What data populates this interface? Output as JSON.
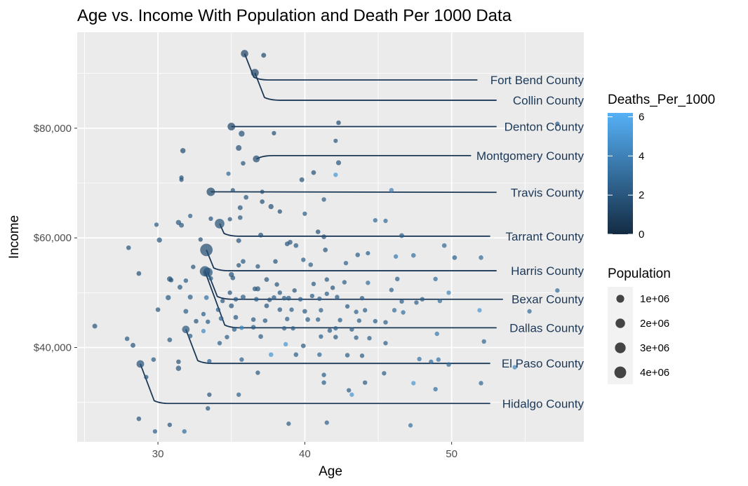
{
  "chart_data": {
    "type": "scatter",
    "title": "Age vs. Income With Population and Death Per 1000 Data",
    "xlabel": "Age",
    "ylabel": "Income",
    "xlim": [
      24.5,
      59.0
    ],
    "ylim": [
      22800,
      97500
    ],
    "x_ticks": [
      30,
      40,
      50
    ],
    "y_ticks": [
      {
        "value": 40000,
        "label": "$40,000"
      },
      {
        "value": 60000,
        "label": "$60,000"
      },
      {
        "value": 80000,
        "label": "$80,000"
      }
    ],
    "grid": true,
    "color_scale": {
      "name": "Deaths_Per_1000",
      "min": 0,
      "max": 6.2,
      "low_color": "#132b43",
      "high_color": "#56b1f7",
      "breaks": [
        0,
        2,
        4,
        6
      ]
    },
    "size_legend": {
      "name": "Population",
      "breaks": [
        {
          "value": 1000000,
          "label": "1e+06"
        },
        {
          "value": 2000000,
          "label": "2e+06"
        },
        {
          "value": 3000000,
          "label": "3e+06"
        },
        {
          "value": 4000000,
          "label": "4e+06"
        }
      ]
    },
    "labeled_points": [
      {
        "name": "Fort Bend County",
        "age": 35.9,
        "income": 93600,
        "pop": 800000,
        "d": 1.2,
        "label_y": 88800
      },
      {
        "name": "Collin County",
        "age": 36.6,
        "income": 90100,
        "pop": 1000000,
        "d": 1.2,
        "label_y": 85100
      },
      {
        "name": "Denton County",
        "age": 35.0,
        "income": 80300,
        "pop": 900000,
        "d": 1.2,
        "label_y": 80300
      },
      {
        "name": "Montgomery County",
        "age": 36.7,
        "income": 74400,
        "pop": 600000,
        "d": 1.6,
        "label_y": 75000
      },
      {
        "name": "Travis County",
        "age": 33.6,
        "income": 68400,
        "pop": 1300000,
        "d": 1.4,
        "label_y": 68300
      },
      {
        "name": "Tarrant County",
        "age": 34.2,
        "income": 62600,
        "pop": 2100000,
        "d": 1.8,
        "label_y": 60300
      },
      {
        "name": "Harris County",
        "age": 33.3,
        "income": 57800,
        "pop": 4700000,
        "d": 1.6,
        "label_y": 54000
      },
      {
        "name": "Bexar County",
        "age": 33.4,
        "income": 53700,
        "pop": 2000000,
        "d": 2.0,
        "label_y": 48800
      },
      {
        "name": "Dallas County",
        "age": 33.2,
        "income": 53900,
        "pop": 2600000,
        "d": 1.8,
        "label_y": 43600
      },
      {
        "name": "El Paso County",
        "age": 31.9,
        "income": 43300,
        "pop": 840000,
        "d": 2.0,
        "label_y": 37100
      },
      {
        "name": "Hidalgo County",
        "age": 28.8,
        "income": 37000,
        "pop": 860000,
        "d": 1.8,
        "label_y": 29800
      }
    ],
    "points": [
      [
        37.2,
        93300,
        60000,
        1.5
      ],
      [
        42.3,
        81000,
        30000,
        1.6
      ],
      [
        37.9,
        79100,
        15000,
        1.8
      ],
      [
        35.5,
        76400,
        200000,
        1.8
      ],
      [
        35.7,
        79000,
        250000,
        1.8
      ],
      [
        31.7,
        75900,
        120000,
        1.6
      ],
      [
        42.1,
        77700,
        10000,
        2.0
      ],
      [
        42.1,
        71500,
        15000,
        5.0
      ],
      [
        42.3,
        73700,
        70000,
        2.0
      ],
      [
        40.6,
        71900,
        40000,
        1.8
      ],
      [
        39.8,
        70600,
        60000,
        2.0
      ],
      [
        34.8,
        71700,
        10000,
        2.8
      ],
      [
        35.8,
        73600,
        30000,
        2.0
      ],
      [
        31.6,
        71000,
        15000,
        2.0
      ],
      [
        31.6,
        70600,
        15000,
        2.0
      ],
      [
        37.1,
        68400,
        10000,
        1.8
      ],
      [
        35.1,
        68700,
        10000,
        2.0
      ],
      [
        36.0,
        67400,
        40000,
        2.0
      ],
      [
        37.7,
        65700,
        100000,
        1.8
      ],
      [
        37.1,
        66600,
        30000,
        1.8
      ],
      [
        41.3,
        67000,
        20000,
        2.4
      ],
      [
        45.9,
        68700,
        20000,
        4.0
      ],
      [
        35.6,
        65500,
        60000,
        2.0
      ],
      [
        35.6,
        63700,
        30000,
        2.2
      ],
      [
        34.9,
        63400,
        10000,
        2.0
      ],
      [
        38.3,
        64800,
        15000,
        1.8
      ],
      [
        40.0,
        64400,
        15000,
        2.2
      ],
      [
        44.8,
        63200,
        15000,
        2.8
      ],
      [
        45.5,
        63100,
        15000,
        3.0
      ],
      [
        32.2,
        64000,
        15000,
        2.6
      ],
      [
        31.4,
        62800,
        100000,
        2.0
      ],
      [
        31.6,
        62300,
        60000,
        2.2
      ],
      [
        33.6,
        63500,
        20000,
        2.0
      ],
      [
        29.9,
        62400,
        15000,
        2.2
      ],
      [
        28.0,
        58200,
        30000,
        2.0
      ],
      [
        30.1,
        59600,
        100000,
        2.0
      ],
      [
        32.9,
        59700,
        15000,
        1.8
      ],
      [
        35.5,
        59500,
        60000,
        2.0
      ],
      [
        37.0,
        60500,
        60000,
        1.8
      ],
      [
        40.9,
        61100,
        30000,
        1.8
      ],
      [
        39.0,
        59200,
        50000,
        2.0
      ],
      [
        39.4,
        58600,
        40000,
        2.2
      ],
      [
        38.8,
        58900,
        40000,
        2.0
      ],
      [
        41.3,
        60200,
        40000,
        1.8
      ],
      [
        41.4,
        57800,
        40000,
        2.0
      ],
      [
        46.6,
        60400,
        60000,
        2.4
      ],
      [
        49.5,
        58600,
        30000,
        2.8
      ],
      [
        50.2,
        56400,
        40000,
        2.6
      ],
      [
        52.0,
        56400,
        30000,
        3.0
      ],
      [
        46.2,
        56600,
        20000,
        3.6
      ],
      [
        47.4,
        56800,
        30000,
        3.2
      ],
      [
        43.6,
        56900,
        30000,
        2.4
      ],
      [
        44.3,
        57200,
        10000,
        2.4
      ],
      [
        42.8,
        55400,
        20000,
        2.6
      ],
      [
        39.9,
        56000,
        20000,
        2.4
      ],
      [
        40.4,
        55100,
        30000,
        2.4
      ],
      [
        38.0,
        55700,
        30000,
        2.0
      ],
      [
        35.8,
        55700,
        40000,
        2.2
      ],
      [
        35.5,
        55000,
        20000,
        2.0
      ],
      [
        36.8,
        54800,
        20000,
        2.2
      ],
      [
        32.4,
        54700,
        20000,
        2.0
      ],
      [
        28.7,
        53500,
        40000,
        1.8
      ],
      [
        30.8,
        52500,
        130000,
        1.8
      ],
      [
        30.9,
        52300,
        30000,
        1.8
      ],
      [
        31.9,
        52200,
        20000,
        2.2
      ],
      [
        33.6,
        52600,
        20000,
        2.2
      ],
      [
        35.0,
        53300,
        100000,
        1.8
      ],
      [
        35.1,
        52700,
        40000,
        2.0
      ],
      [
        37.4,
        52400,
        40000,
        2.0
      ],
      [
        38.1,
        51500,
        20000,
        2.0
      ],
      [
        40.6,
        51600,
        20000,
        2.2
      ],
      [
        41.5,
        52400,
        20000,
        2.2
      ],
      [
        42.7,
        51900,
        20000,
        2.4
      ],
      [
        44.3,
        51800,
        20000,
        3.0
      ],
      [
        46.3,
        52500,
        30000,
        2.6
      ],
      [
        48.9,
        52500,
        20000,
        3.0
      ],
      [
        45.9,
        50500,
        20000,
        2.6
      ],
      [
        41.9,
        50900,
        20000,
        2.0
      ],
      [
        41.5,
        49800,
        20000,
        2.4
      ],
      [
        39.3,
        50400,
        20000,
        2.0
      ],
      [
        38.3,
        50000,
        20000,
        2.2
      ],
      [
        37.9,
        49100,
        40000,
        2.2
      ],
      [
        36.8,
        50700,
        80000,
        2.0
      ],
      [
        36.6,
        50700,
        40000,
        2.0
      ],
      [
        35.8,
        49200,
        60000,
        2.4
      ],
      [
        34.9,
        50000,
        20000,
        2.0
      ],
      [
        31.5,
        51000,
        60000,
        2.2
      ],
      [
        30.7,
        49100,
        100000,
        2.2
      ],
      [
        32.2,
        49200,
        60000,
        2.4
      ],
      [
        33.3,
        49100,
        40000,
        3.2
      ],
      [
        34.4,
        48500,
        20000,
        2.0
      ],
      [
        35.3,
        48800,
        30000,
        2.2
      ],
      [
        36.7,
        48800,
        40000,
        2.4
      ],
      [
        37.6,
        48700,
        30000,
        2.0
      ],
      [
        38.6,
        49000,
        30000,
        2.4
      ],
      [
        38.9,
        49000,
        50000,
        2.2
      ],
      [
        39.7,
        48800,
        30000,
        2.6
      ],
      [
        40.5,
        49400,
        20000,
        2.2
      ],
      [
        41.0,
        48900,
        20000,
        2.4
      ],
      [
        42.2,
        49200,
        20000,
        2.2
      ],
      [
        43.9,
        49000,
        20000,
        2.2
      ],
      [
        46.6,
        48400,
        20000,
        2.4
      ],
      [
        47.6,
        48200,
        20000,
        2.6
      ],
      [
        48.0,
        48800,
        30000,
        2.4
      ],
      [
        49.2,
        48500,
        20000,
        3.0
      ],
      [
        49.8,
        50000,
        15000,
        4.2
      ],
      [
        57.2,
        50400,
        20000,
        3.0
      ],
      [
        55.3,
        46600,
        15000,
        3.0
      ],
      [
        51.9,
        46800,
        15000,
        5.0
      ],
      [
        46.1,
        46800,
        20000,
        3.0
      ],
      [
        46.7,
        46400,
        20000,
        3.2
      ],
      [
        44.1,
        46800,
        20000,
        2.4
      ],
      [
        43.5,
        46500,
        20000,
        2.6
      ],
      [
        42.9,
        47500,
        20000,
        2.2
      ],
      [
        41.1,
        46800,
        20000,
        2.6
      ],
      [
        40.0,
        46600,
        40000,
        2.2
      ],
      [
        39.1,
        46900,
        20000,
        2.4
      ],
      [
        38.3,
        46900,
        30000,
        2.2
      ],
      [
        37.4,
        47600,
        40000,
        2.0
      ],
      [
        35.0,
        47600,
        60000,
        2.0
      ],
      [
        34.1,
        46900,
        20000,
        2.2
      ],
      [
        33.1,
        46100,
        20000,
        2.4
      ],
      [
        31.9,
        46600,
        60000,
        2.4
      ],
      [
        30.0,
        46900,
        30000,
        2.0
      ],
      [
        32.6,
        44800,
        30000,
        2.0
      ],
      [
        33.4,
        44700,
        20000,
        2.2
      ],
      [
        34.3,
        45300,
        40000,
        2.6
      ],
      [
        35.3,
        45500,
        40000,
        2.2
      ],
      [
        36.5,
        45100,
        30000,
        2.2
      ],
      [
        37.3,
        44900,
        30000,
        2.2
      ],
      [
        38.8,
        45200,
        20000,
        2.4
      ],
      [
        40.2,
        45100,
        40000,
        2.4
      ],
      [
        40.9,
        45100,
        20000,
        2.4
      ],
      [
        42.4,
        45000,
        20000,
        2.4
      ],
      [
        43.7,
        44900,
        20000,
        2.4
      ],
      [
        44.8,
        44800,
        20000,
        2.4
      ],
      [
        45.5,
        44600,
        20000,
        2.4
      ],
      [
        43.2,
        43300,
        20000,
        2.4
      ],
      [
        42.1,
        43500,
        20000,
        2.4
      ],
      [
        41.7,
        43100,
        30000,
        2.4
      ],
      [
        39.2,
        43500,
        20000,
        2.4
      ],
      [
        38.6,
        43500,
        20000,
        2.4
      ],
      [
        36.5,
        43700,
        40000,
        2.2
      ],
      [
        35.2,
        43300,
        30000,
        2.4
      ],
      [
        35.7,
        43600,
        20000,
        4.2
      ],
      [
        33.1,
        43000,
        15000,
        4.4
      ],
      [
        34.7,
        41900,
        20000,
        2.4
      ],
      [
        37.0,
        42000,
        40000,
        2.4
      ],
      [
        38.7,
        40600,
        20000,
        5.0
      ],
      [
        39.9,
        40300,
        40000,
        2.2
      ],
      [
        41.1,
        42000,
        20000,
        2.4
      ],
      [
        42.1,
        41900,
        30000,
        2.2
      ],
      [
        43.5,
        41800,
        20000,
        2.4
      ],
      [
        44.4,
        41700,
        20000,
        2.4
      ],
      [
        45.5,
        40800,
        20000,
        2.4
      ],
      [
        49.0,
        42500,
        20000,
        3.6
      ],
      [
        52.2,
        41100,
        20000,
        2.8
      ],
      [
        30.8,
        41400,
        40000,
        2.2
      ],
      [
        32.2,
        42100,
        20000,
        2.4
      ],
      [
        34.2,
        40800,
        20000,
        2.4
      ],
      [
        27.9,
        41600,
        30000,
        2.2
      ],
      [
        28.3,
        40400,
        60000,
        2.0
      ],
      [
        29.7,
        37800,
        30000,
        2.2
      ],
      [
        33.5,
        37500,
        15000,
        2.6
      ],
      [
        35.7,
        37800,
        20000,
        2.6
      ],
      [
        37.7,
        38700,
        30000,
        5.0
      ],
      [
        39.4,
        38700,
        30000,
        2.4
      ],
      [
        41.0,
        38700,
        20000,
        2.8
      ],
      [
        42.9,
        38600,
        30000,
        2.4
      ],
      [
        43.9,
        38500,
        20000,
        2.4
      ],
      [
        47.8,
        37900,
        20000,
        3.4
      ],
      [
        48.6,
        37400,
        20000,
        3.0
      ],
      [
        49.1,
        37800,
        20000,
        3.4
      ],
      [
        49.8,
        36900,
        30000,
        3.0
      ],
      [
        54.3,
        36400,
        20000,
        4.2
      ],
      [
        25.7,
        43900,
        60000,
        2.0
      ],
      [
        29.2,
        34600,
        20000,
        2.0
      ],
      [
        31.4,
        37400,
        30000,
        2.0
      ],
      [
        31.4,
        36200,
        130000,
        2.0
      ],
      [
        36.8,
        35400,
        20000,
        2.2
      ],
      [
        41.3,
        35000,
        20000,
        2.4
      ],
      [
        41.3,
        33600,
        20000,
        2.4
      ],
      [
        44.1,
        33600,
        20000,
        2.4
      ],
      [
        45.4,
        35300,
        20000,
        2.4
      ],
      [
        47.4,
        33500,
        15000,
        5.0
      ],
      [
        48.9,
        32400,
        20000,
        3.2
      ],
      [
        52.0,
        33500,
        20000,
        2.8
      ],
      [
        43.0,
        32200,
        20000,
        2.4
      ],
      [
        43.2,
        31400,
        15000,
        5.0
      ],
      [
        35.5,
        31400,
        20000,
        2.6
      ],
      [
        33.5,
        31400,
        20000,
        2.0
      ],
      [
        33.4,
        28900,
        20000,
        2.0
      ],
      [
        28.7,
        27000,
        30000,
        2.0
      ],
      [
        30.8,
        25900,
        20000,
        2.0
      ],
      [
        31.8,
        24700,
        20000,
        3.0
      ],
      [
        29.8,
        24700,
        15000,
        2.6
      ],
      [
        38.9,
        26100,
        15000,
        2.4
      ],
      [
        41.5,
        26300,
        15000,
        2.6
      ],
      [
        47.2,
        25800,
        15000,
        3.2
      ],
      [
        57.2,
        80800,
        15000,
        2.4
      ]
    ]
  }
}
